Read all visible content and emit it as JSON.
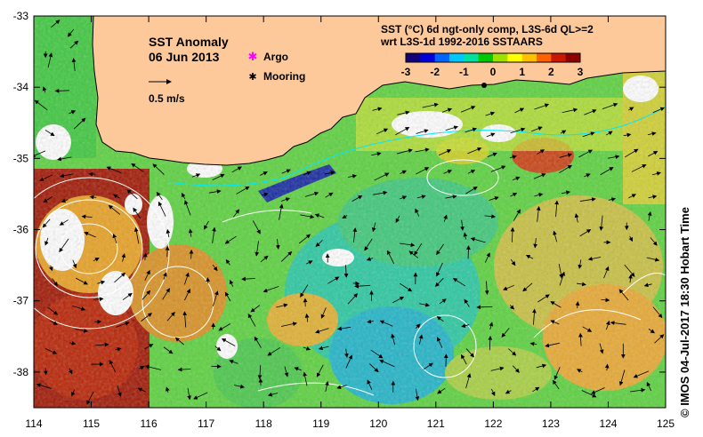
{
  "title": {
    "line1": "SST Anomaly",
    "line2": "06 Jun 2013",
    "scale_label": "0.5 m/s"
  },
  "legend": {
    "argo": "Argo",
    "mooring": "Mooring",
    "argo_color": "#ff00ff",
    "mooring_color": "#000000"
  },
  "colorbar": {
    "line1": "SST (°C) 6d ngt-only comp, L3S-6d QL>=2",
    "line2": "wrt L3S-1d 1992-2016 SSTAARS",
    "ticks": [
      "-3",
      "-2",
      "-1",
      "0",
      "1",
      "2",
      "3"
    ],
    "range": [
      -3,
      3
    ],
    "colors": [
      "#140078",
      "#0000d8",
      "#0064ff",
      "#00c8ff",
      "#00e0a0",
      "#00c800",
      "#a0e000",
      "#ffff00",
      "#ffc000",
      "#ff6000",
      "#c81800",
      "#8c0000"
    ]
  },
  "axes": {
    "x_ticks": [
      "114",
      "115",
      "116",
      "117",
      "118",
      "119",
      "120",
      "121",
      "122",
      "123",
      "124",
      "125"
    ],
    "y_ticks": [
      "-33",
      "-34",
      "-35",
      "-36",
      "-37",
      "-38"
    ],
    "lon_range": [
      114,
      125
    ],
    "lat_range": [
      -38.5,
      -33
    ]
  },
  "colors": {
    "land": "#fdc99a",
    "coast": "#000000",
    "contour": "#ffffff",
    "vector": "#000000"
  },
  "credit": "© IMOS 04-Jul-2017 18:30 Hobart Time"
}
